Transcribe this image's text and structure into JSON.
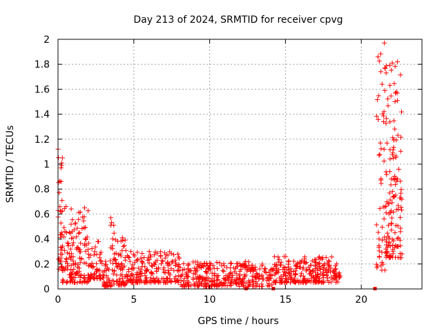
{
  "chart_data": {
    "type": "scatter",
    "title": "Day 213 of 2024, SRMTID for receiver cpvg",
    "xlabel": "GPS time / hours",
    "ylabel": "SRMTID / TECUs",
    "xlim": [
      0,
      24
    ],
    "ylim": [
      0,
      2
    ],
    "xticks": [
      0,
      5,
      10,
      15,
      20
    ],
    "yticks": [
      0,
      0.2,
      0.4,
      0.6,
      0.8,
      1,
      1.2,
      1.4,
      1.6,
      1.8,
      2
    ],
    "xtick_labels": [
      "0",
      "5",
      "10",
      "15",
      "20"
    ],
    "ytick_labels": [
      "0",
      "0.2",
      "0.4",
      "0.6",
      "0.8",
      "1",
      "1.2",
      "1.4",
      "1.6",
      "1.8",
      "2"
    ],
    "grid": true,
    "marker": "+",
    "color": "#ff0000",
    "series": [
      {
        "name": "SRMTID",
        "segments": [
          {
            "x_start": 0.0,
            "x_end": 0.3,
            "y_min": 0.15,
            "y_max": 1.12,
            "points": 40
          },
          {
            "x_start": 0.3,
            "x_end": 1.0,
            "y_min": 0.05,
            "y_max": 0.66,
            "points": 60
          },
          {
            "x_start": 1.0,
            "x_end": 2.0,
            "y_min": 0.05,
            "y_max": 0.65,
            "points": 80
          },
          {
            "x_start": 2.0,
            "x_end": 3.0,
            "y_min": 0.08,
            "y_max": 0.38,
            "points": 60
          },
          {
            "x_start": 3.0,
            "x_end": 3.4,
            "y_min": 0.02,
            "y_max": 0.22,
            "points": 30
          },
          {
            "x_start": 3.4,
            "x_end": 3.7,
            "y_min": 0.02,
            "y_max": 0.57,
            "points": 20
          },
          {
            "x_start": 3.7,
            "x_end": 4.5,
            "y_min": 0.03,
            "y_max": 0.41,
            "points": 60
          },
          {
            "x_start": 4.5,
            "x_end": 8.0,
            "y_min": 0.05,
            "y_max": 0.3,
            "points": 200
          },
          {
            "x_start": 8.0,
            "x_end": 14.2,
            "y_min": 0.02,
            "y_max": 0.22,
            "points": 330
          },
          {
            "x_start": 14.2,
            "x_end": 18.6,
            "y_min": 0.05,
            "y_max": 0.26,
            "points": 260
          },
          {
            "x_start": 21.0,
            "x_end": 21.6,
            "y_min": 0.15,
            "y_max": 1.97,
            "points": 50
          },
          {
            "x_start": 21.6,
            "x_end": 22.7,
            "y_min": 0.25,
            "y_max": 1.82,
            "points": 140
          }
        ]
      }
    ],
    "baseline_markers_x": [
      12.4,
      14.2,
      20.9
    ]
  }
}
